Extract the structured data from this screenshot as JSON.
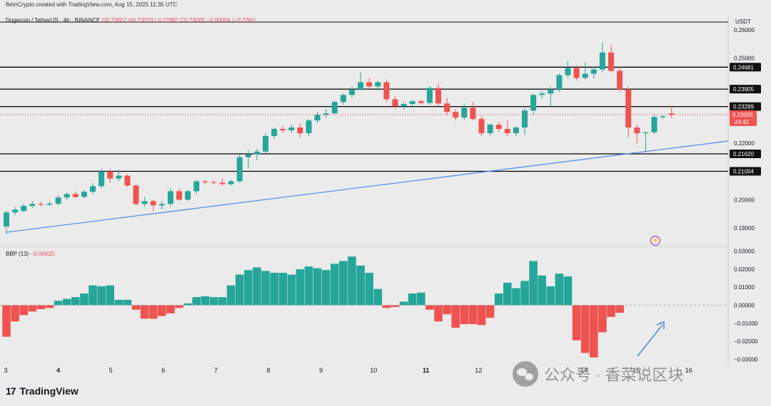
{
  "header": {
    "credit": "BeInCrypto created with TradingView.com, Aug 15, 2025 11:35 UTC",
    "symbol": "Dogecoin / TetherUS · 4h · BINANCE",
    "ohlc": "O0.23057 H0.23378 L0.22882 C0.23005 −0.00054 (−0.23%)"
  },
  "price_axis": {
    "unit": "USDT",
    "current_price": "0.23005",
    "countdown": "24:42"
  },
  "indicator": {
    "name": "BBP (13)",
    "value": "−0.00420"
  },
  "branding": {
    "logo_text": "TradingView",
    "watermark": "公众号 · 香菜说区块"
  },
  "icons": {
    "alert": "lightning-bolt-icon",
    "logo": "tradingview-logo-icon",
    "watermark": "wechat-icon"
  },
  "colors": {
    "up": "#26a69a",
    "down": "#ef5350",
    "trendline": "#5b8ff0",
    "arrow": "#2f6fe0",
    "level": "#000000"
  },
  "chart_data": [
    {
      "type": "candlestick",
      "title": "Dogecoin / TetherUS · 4h · BINANCE",
      "ylabel": "USDT",
      "ylim": [
        0.185,
        0.265
      ],
      "x_tick_labels": [
        "3",
        "4",
        "5",
        "6",
        "7",
        "8",
        "9",
        "10",
        "11",
        "12",
        "13",
        "14",
        "15",
        "16"
      ],
      "y_tick_labels": [
        "0.26000",
        "0.25000",
        "0.22000",
        "0.20000",
        "0.19000"
      ],
      "horizontal_levels": [
        "0.24681",
        "0.23905",
        "0.23289",
        "0.21620",
        "0.21004"
      ],
      "trendline": {
        "start": [
          0,
          0.1885
        ],
        "end": [
          83,
          0.2205
        ]
      },
      "candles": [
        {
          "o": 0.1905,
          "h": 0.196,
          "l": 0.188,
          "c": 0.1955
        },
        {
          "o": 0.1955,
          "h": 0.1975,
          "l": 0.1945,
          "c": 0.1965
        },
        {
          "o": 0.196,
          "h": 0.1985,
          "l": 0.1955,
          "c": 0.1978
        },
        {
          "o": 0.1978,
          "h": 0.1995,
          "l": 0.197,
          "c": 0.1985
        },
        {
          "o": 0.1985,
          "h": 0.1992,
          "l": 0.1976,
          "c": 0.1982
        },
        {
          "o": 0.1982,
          "h": 0.1995,
          "l": 0.1978,
          "c": 0.1986
        },
        {
          "o": 0.1986,
          "h": 0.2015,
          "l": 0.198,
          "c": 0.2008
        },
        {
          "o": 0.2008,
          "h": 0.2025,
          "l": 0.2,
          "c": 0.202
        },
        {
          "o": 0.202,
          "h": 0.203,
          "l": 0.2005,
          "c": 0.201
        },
        {
          "o": 0.201,
          "h": 0.2035,
          "l": 0.2005,
          "c": 0.2028
        },
        {
          "o": 0.2028,
          "h": 0.206,
          "l": 0.202,
          "c": 0.2048
        },
        {
          "o": 0.2048,
          "h": 0.211,
          "l": 0.204,
          "c": 0.21
        },
        {
          "o": 0.21,
          "h": 0.211,
          "l": 0.206,
          "c": 0.2075
        },
        {
          "o": 0.2075,
          "h": 0.2105,
          "l": 0.2065,
          "c": 0.2085
        },
        {
          "o": 0.2085,
          "h": 0.209,
          "l": 0.2045,
          "c": 0.205
        },
        {
          "o": 0.205,
          "h": 0.2055,
          "l": 0.198,
          "c": 0.1985
        },
        {
          "o": 0.1985,
          "h": 0.201,
          "l": 0.1975,
          "c": 0.1995
        },
        {
          "o": 0.1995,
          "h": 0.2,
          "l": 0.196,
          "c": 0.198
        },
        {
          "o": 0.198,
          "h": 0.1995,
          "l": 0.1965,
          "c": 0.1985
        },
        {
          "o": 0.1985,
          "h": 0.204,
          "l": 0.1975,
          "c": 0.203
        },
        {
          "o": 0.203,
          "h": 0.204,
          "l": 0.1995,
          "c": 0.2
        },
        {
          "o": 0.2,
          "h": 0.2035,
          "l": 0.1995,
          "c": 0.203
        },
        {
          "o": 0.203,
          "h": 0.207,
          "l": 0.202,
          "c": 0.2065
        },
        {
          "o": 0.2065,
          "h": 0.207,
          "l": 0.2055,
          "c": 0.2062
        },
        {
          "o": 0.2062,
          "h": 0.2068,
          "l": 0.2055,
          "c": 0.206
        },
        {
          "o": 0.206,
          "h": 0.2075,
          "l": 0.205,
          "c": 0.2055
        },
        {
          "o": 0.2055,
          "h": 0.207,
          "l": 0.205,
          "c": 0.2065
        },
        {
          "o": 0.2065,
          "h": 0.216,
          "l": 0.206,
          "c": 0.215
        },
        {
          "o": 0.215,
          "h": 0.2175,
          "l": 0.211,
          "c": 0.216
        },
        {
          "o": 0.216,
          "h": 0.218,
          "l": 0.214,
          "c": 0.217
        },
        {
          "o": 0.217,
          "h": 0.2235,
          "l": 0.2165,
          "c": 0.2225
        },
        {
          "o": 0.2225,
          "h": 0.2255,
          "l": 0.2215,
          "c": 0.225
        },
        {
          "o": 0.225,
          "h": 0.226,
          "l": 0.2235,
          "c": 0.2245
        },
        {
          "o": 0.2245,
          "h": 0.2265,
          "l": 0.2235,
          "c": 0.2255
        },
        {
          "o": 0.2255,
          "h": 0.227,
          "l": 0.222,
          "c": 0.2235
        },
        {
          "o": 0.2235,
          "h": 0.2285,
          "l": 0.2225,
          "c": 0.228
        },
        {
          "o": 0.228,
          "h": 0.231,
          "l": 0.227,
          "c": 0.23
        },
        {
          "o": 0.23,
          "h": 0.232,
          "l": 0.229,
          "c": 0.2305
        },
        {
          "o": 0.2305,
          "h": 0.235,
          "l": 0.23,
          "c": 0.2345
        },
        {
          "o": 0.2345,
          "h": 0.2375,
          "l": 0.2335,
          "c": 0.237
        },
        {
          "o": 0.237,
          "h": 0.24,
          "l": 0.236,
          "c": 0.239
        },
        {
          "o": 0.239,
          "h": 0.245,
          "l": 0.2385,
          "c": 0.2415
        },
        {
          "o": 0.2415,
          "h": 0.243,
          "l": 0.2395,
          "c": 0.24
        },
        {
          "o": 0.24,
          "h": 0.242,
          "l": 0.2385,
          "c": 0.2415
        },
        {
          "o": 0.2415,
          "h": 0.2425,
          "l": 0.2345,
          "c": 0.2355
        },
        {
          "o": 0.2355,
          "h": 0.2365,
          "l": 0.232,
          "c": 0.233
        },
        {
          "o": 0.233,
          "h": 0.2345,
          "l": 0.232,
          "c": 0.2338
        },
        {
          "o": 0.2338,
          "h": 0.2352,
          "l": 0.233,
          "c": 0.2348
        },
        {
          "o": 0.2348,
          "h": 0.2355,
          "l": 0.2335,
          "c": 0.2342
        },
        {
          "o": 0.2342,
          "h": 0.24,
          "l": 0.2335,
          "c": 0.2395
        },
        {
          "o": 0.2395,
          "h": 0.241,
          "l": 0.233,
          "c": 0.234
        },
        {
          "o": 0.234,
          "h": 0.236,
          "l": 0.23,
          "c": 0.231
        },
        {
          "o": 0.231,
          "h": 0.232,
          "l": 0.228,
          "c": 0.229
        },
        {
          "o": 0.229,
          "h": 0.234,
          "l": 0.228,
          "c": 0.2325
        },
        {
          "o": 0.2325,
          "h": 0.2345,
          "l": 0.228,
          "c": 0.2285
        },
        {
          "o": 0.2285,
          "h": 0.2295,
          "l": 0.2225,
          "c": 0.2235
        },
        {
          "o": 0.2235,
          "h": 0.227,
          "l": 0.2225,
          "c": 0.2265
        },
        {
          "o": 0.2265,
          "h": 0.2275,
          "l": 0.224,
          "c": 0.225
        },
        {
          "o": 0.225,
          "h": 0.228,
          "l": 0.2225,
          "c": 0.2235
        },
        {
          "o": 0.2235,
          "h": 0.226,
          "l": 0.2225,
          "c": 0.2255
        },
        {
          "o": 0.2255,
          "h": 0.2325,
          "l": 0.223,
          "c": 0.2315
        },
        {
          "o": 0.2315,
          "h": 0.2375,
          "l": 0.23,
          "c": 0.237
        },
        {
          "o": 0.237,
          "h": 0.2385,
          "l": 0.236,
          "c": 0.2375
        },
        {
          "o": 0.2375,
          "h": 0.24,
          "l": 0.233,
          "c": 0.239
        },
        {
          "o": 0.239,
          "h": 0.2445,
          "l": 0.238,
          "c": 0.244
        },
        {
          "o": 0.244,
          "h": 0.249,
          "l": 0.243,
          "c": 0.2465
        },
        {
          "o": 0.2465,
          "h": 0.2475,
          "l": 0.242,
          "c": 0.243
        },
        {
          "o": 0.243,
          "h": 0.2485,
          "l": 0.2425,
          "c": 0.2445
        },
        {
          "o": 0.2445,
          "h": 0.247,
          "l": 0.243,
          "c": 0.246
        },
        {
          "o": 0.246,
          "h": 0.2555,
          "l": 0.245,
          "c": 0.252
        },
        {
          "o": 0.252,
          "h": 0.2545,
          "l": 0.245,
          "c": 0.2455
        },
        {
          "o": 0.2455,
          "h": 0.247,
          "l": 0.238,
          "c": 0.239
        },
        {
          "o": 0.239,
          "h": 0.24,
          "l": 0.222,
          "c": 0.2255
        },
        {
          "o": 0.2255,
          "h": 0.2265,
          "l": 0.22,
          "c": 0.2235
        },
        {
          "o": 0.2235,
          "h": 0.224,
          "l": 0.217,
          "c": 0.2238
        },
        {
          "o": 0.2238,
          "h": 0.23,
          "l": 0.2232,
          "c": 0.2292
        },
        {
          "o": 0.2292,
          "h": 0.2298,
          "l": 0.2285,
          "c": 0.2295
        },
        {
          "o": 0.2305,
          "h": 0.233,
          "l": 0.2288,
          "c": 0.23
        }
      ]
    },
    {
      "type": "bar",
      "title": "BBP (13)",
      "ylim": [
        -0.033,
        0.033
      ],
      "y_tick_labels": [
        "0.03000",
        "0.02000",
        "0.01000",
        "0.00000",
        "−0.01000",
        "−0.02000",
        "−0.03000"
      ],
      "values": [
        -0.0175,
        -0.009,
        -0.0055,
        -0.0035,
        -0.0022,
        -0.0015,
        0.0025,
        0.0035,
        0.0045,
        0.0065,
        0.011,
        0.0105,
        0.011,
        0.003,
        0.003,
        -0.0025,
        -0.0075,
        -0.0075,
        -0.006,
        -0.0045,
        -0.0015,
        0.001,
        0.0045,
        0.005,
        0.0045,
        0.0045,
        0.011,
        0.017,
        0.0195,
        0.021,
        0.019,
        0.018,
        0.018,
        0.017,
        0.02,
        0.0215,
        0.0205,
        0.0195,
        0.023,
        0.0245,
        0.027,
        0.022,
        0.018,
        0.009,
        -0.0015,
        -0.001,
        0.002,
        0.0065,
        0.007,
        -0.0025,
        -0.009,
        -0.005,
        -0.0125,
        -0.0105,
        -0.0105,
        -0.011,
        -0.007,
        0.0065,
        0.0125,
        0.0095,
        0.0135,
        0.0245,
        0.0165,
        0.0105,
        0.0175,
        0.016,
        -0.0195,
        -0.0265,
        -0.029,
        -0.015,
        -0.0065,
        -0.0042
      ]
    }
  ]
}
